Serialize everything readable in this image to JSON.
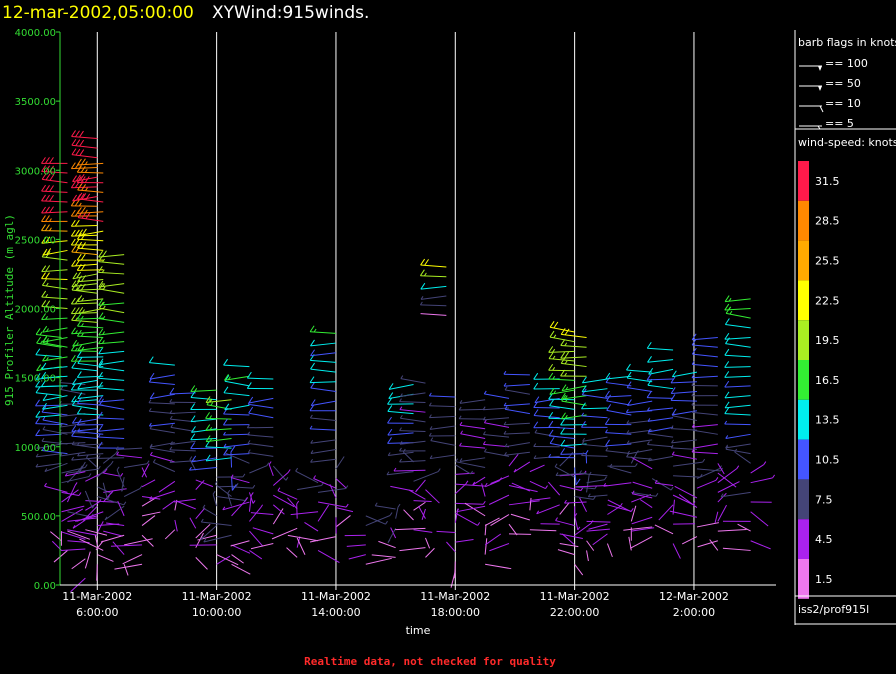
{
  "title_date": "12-mar-2002,05:00:00",
  "title_main": "XYWind:915winds.",
  "footer_warning": "Realtime data, not checked for quality",
  "source_label": "iss2/prof915l",
  "chart_data": {
    "type": "wind-barb",
    "ylabel": "915 Profiler Altitude (m agl)",
    "xlabel": "time",
    "ylim": [
      0,
      4000
    ],
    "yticks": [
      "0.00",
      "500.00",
      "1000.00",
      "1500.00",
      "2000.00",
      "2500.00",
      "3000.00",
      "3500.00",
      "4000.00"
    ],
    "xlim_hours": [
      4.75,
      28.75
    ],
    "xticks": [
      {
        "hour": 6,
        "line1": "11-Mar-2002",
        "line2": "6:00:00"
      },
      {
        "hour": 10,
        "line1": "11-Mar-2002",
        "line2": "10:00:00"
      },
      {
        "hour": 14,
        "line1": "11-Mar-2002",
        "line2": "14:00:00"
      },
      {
        "hour": 18,
        "line1": "11-Mar-2002",
        "line2": "18:00:00"
      },
      {
        "hour": 22,
        "line1": "11-Mar-2002",
        "line2": "22:00:00"
      },
      {
        "hour": 26,
        "line1": "12-Mar-2002",
        "line2": "2:00:00"
      }
    ],
    "grid": "vertical",
    "barb_legend_title": "barb flags in knots",
    "barb_legend": [
      {
        "label": "== 100",
        "type": "flag"
      },
      {
        "label": "== 50",
        "type": "half-flag"
      },
      {
        "label": "== 10",
        "type": "full"
      },
      {
        "label": "== 5",
        "type": "half"
      }
    ],
    "speed_legend_title": "wind-speed: knots",
    "speed_legend": [
      {
        "label": "31.5",
        "color": "#ff1a4a"
      },
      {
        "label": "28.5",
        "color": "#ff8800"
      },
      {
        "label": "25.5",
        "color": "#ffaa00"
      },
      {
        "label": "22.5",
        "color": "#ffff00"
      },
      {
        "label": "19.5",
        "color": "#aaee22"
      },
      {
        "label": "16.5",
        "color": "#33ee33"
      },
      {
        "label": "13.5",
        "color": "#00eeee"
      },
      {
        "label": "10.5",
        "color": "#4455ff"
      },
      {
        "label": "7.5",
        "color": "#444477"
      },
      {
        "label": "4.5",
        "color": "#aa22ee"
      },
      {
        "label": "1.5",
        "color": "#ee77ee"
      }
    ],
    "profiles": [
      {
        "hour": 4.8,
        "top": 1850,
        "base": 250,
        "core_speed": 14
      },
      {
        "hour": 5.0,
        "top": 3100,
        "base": 250,
        "core_speed": 24
      },
      {
        "hour": 5.6,
        "top": 1450,
        "base": 50,
        "core_speed": 8
      },
      {
        "hour": 6.0,
        "top": 3250,
        "base": 150,
        "core_speed": 25
      },
      {
        "hour": 6.2,
        "top": 3100,
        "base": 250,
        "core_speed": 23
      },
      {
        "hour": 6.9,
        "top": 2450,
        "base": 150,
        "core_speed": 17
      },
      {
        "hour": 7.5,
        "top": 1000,
        "base": 150,
        "core_speed": 5
      },
      {
        "hour": 8.6,
        "top": 1600,
        "base": 400,
        "core_speed": 10
      },
      {
        "hour": 9.3,
        "top": 1450,
        "base": 200,
        "core_speed": 9
      },
      {
        "hour": 10.0,
        "top": 1450,
        "base": 150,
        "core_speed": 13
      },
      {
        "hour": 10.5,
        "top": 1350,
        "base": 150,
        "core_speed": 16
      },
      {
        "hour": 11.1,
        "top": 1600,
        "base": 250,
        "core_speed": 13
      },
      {
        "hour": 11.9,
        "top": 1550,
        "base": 300,
        "core_speed": 10
      },
      {
        "hour": 12.7,
        "top": 700,
        "base": 200,
        "core_speed": 5
      },
      {
        "hour": 13.4,
        "top": 800,
        "base": 250,
        "core_speed": 6
      },
      {
        "hour": 14.0,
        "top": 1850,
        "base": 350,
        "core_speed": 12
      },
      {
        "hour": 15.0,
        "top": 550,
        "base": 150,
        "core_speed": 7
      },
      {
        "hour": 16.0,
        "top": 600,
        "base": 200,
        "core_speed": 7
      },
      {
        "hour": 16.6,
        "top": 1450,
        "base": 400,
        "core_speed": 12
      },
      {
        "hour": 17.0,
        "top": 1500,
        "base": 200,
        "core_speed": 7
      },
      {
        "hour": 17.7,
        "top": 2300,
        "base": 1950,
        "core_speed": 18
      },
      {
        "hour": 18.0,
        "top": 1400,
        "base": 100,
        "core_speed": 8
      },
      {
        "hour": 19.0,
        "top": 1400,
        "base": 150,
        "core_speed": 7
      },
      {
        "hour": 19.8,
        "top": 1400,
        "base": 300,
        "core_speed": 7
      },
      {
        "hour": 20.5,
        "top": 1550,
        "base": 400,
        "core_speed": 9
      },
      {
        "hour": 21.5,
        "top": 1500,
        "base": 300,
        "core_speed": 11
      },
      {
        "hour": 22.0,
        "top": 1850,
        "base": 150,
        "core_speed": 17
      },
      {
        "hour": 22.4,
        "top": 1850,
        "base": 250,
        "core_speed": 18
      },
      {
        "hour": 23.1,
        "top": 1500,
        "base": 300,
        "core_speed": 11
      },
      {
        "hour": 23.9,
        "top": 1550,
        "base": 250,
        "core_speed": 11
      },
      {
        "hour": 24.6,
        "top": 1550,
        "base": 350,
        "core_speed": 10
      },
      {
        "hour": 25.3,
        "top": 1750,
        "base": 300,
        "core_speed": 12
      },
      {
        "hour": 26.1,
        "top": 1600,
        "base": 350,
        "core_speed": 11
      },
      {
        "hour": 26.8,
        "top": 1800,
        "base": 250,
        "core_speed": 9
      },
      {
        "hour": 27.9,
        "top": 2100,
        "base": 250,
        "core_speed": 15
      }
    ]
  }
}
